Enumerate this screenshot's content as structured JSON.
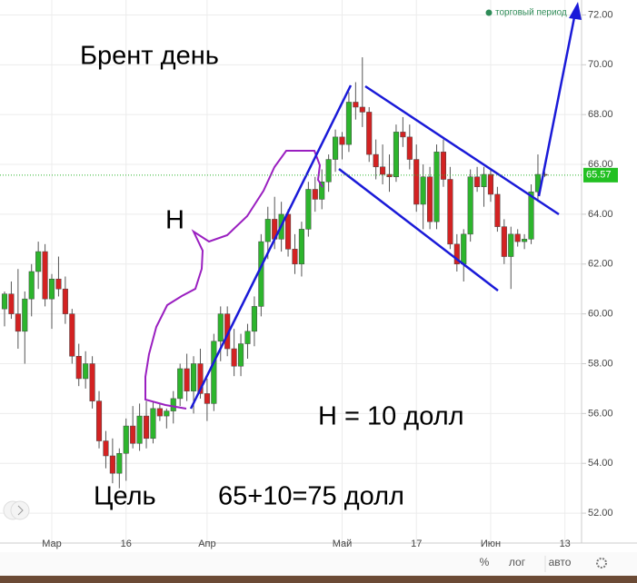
{
  "chart_data": {
    "type": "candlestick",
    "title": "Брент день",
    "annotations": [
      "Н",
      "Н = 10 долл",
      "Цель",
      "65+10=75 долл"
    ],
    "legend_label": "торговый период",
    "toolbar": [
      "%",
      "лог",
      "авто"
    ],
    "up_color": "#2db52d",
    "down_color": "#d32222",
    "categories": [
      null,
      null,
      null,
      null,
      null,
      null,
      null,
      "Мар",
      null,
      null,
      null,
      null,
      null,
      null,
      null,
      null,
      null,
      null,
      "16",
      null,
      null,
      null,
      null,
      null,
      null,
      null,
      null,
      null,
      null,
      null,
      "Апр",
      null,
      null,
      null,
      null,
      null,
      null,
      null,
      null,
      null,
      null,
      null,
      null,
      null,
      null,
      null,
      null,
      null,
      null,
      null,
      "Май",
      null,
      null,
      null,
      null,
      null,
      null,
      null,
      null,
      null,
      null,
      "17",
      null,
      null,
      null,
      null,
      null,
      null,
      null,
      null,
      null,
      null,
      "Июн",
      null,
      null,
      null,
      null,
      null,
      null,
      null,
      null,
      null,
      null,
      "13"
    ],
    "open": [
      60.2,
      60.8,
      60.0,
      59.3,
      60.6,
      61.7,
      62.5,
      60.6,
      61.4,
      61.0,
      60.0,
      58.3,
      57.4,
      58.0,
      56.5,
      54.9,
      54.3,
      53.6,
      54.4,
      55.5,
      54.8,
      55.9,
      55.0,
      56.2,
      55.9,
      56.1,
      56.6,
      57.8,
      56.9,
      58.0,
      56.8,
      56.4,
      58.9,
      60.0,
      58.6,
      57.9,
      58.8,
      59.3,
      60.3,
      62.9,
      63.8,
      63.0,
      64.0,
      62.6,
      62.0,
      63.4,
      65.0,
      64.6,
      65.3,
      66.2,
      67.1,
      66.8,
      68.5,
      68.3,
      68.1,
      66.4,
      65.9,
      65.6,
      65.5,
      67.3,
      67.1,
      66.2,
      64.4,
      65.5,
      63.7,
      66.5,
      65.4,
      62.8,
      62.0,
      63.2,
      65.5,
      65.1,
      65.6,
      64.8,
      63.5,
      62.3,
      63.2,
      62.9,
      63.0,
      64.9,
      65.6,
      null,
      null,
      null
    ],
    "high": [
      60.9,
      61.3,
      61.8,
      60.9,
      62.0,
      62.9,
      62.8,
      61.6,
      62.3,
      61.5,
      60.2,
      58.8,
      58.5,
      58.3,
      56.9,
      55.3,
      55.0,
      54.6,
      55.8,
      56.3,
      56.4,
      56.5,
      56.5,
      56.4,
      56.2,
      56.9,
      58.0,
      58.4,
      58.3,
      58.6,
      57.4,
      59.2,
      60.3,
      60.3,
      59.4,
      59.2,
      59.6,
      60.7,
      63.2,
      64.3,
      64.7,
      64.5,
      64.2,
      63.2,
      63.7,
      65.3,
      65.5,
      65.8,
      66.4,
      67.4,
      67.3,
      68.9,
      69.3,
      70.3,
      68.3,
      67.0,
      66.8,
      66.4,
      67.6,
      67.9,
      67.6,
      66.8,
      66.0,
      65.9,
      66.8,
      67.0,
      65.9,
      63.2,
      63.4,
      65.8,
      65.9,
      65.9,
      65.8,
      65.1,
      63.8,
      63.5,
      63.4,
      63.2,
      65.2,
      66.4,
      65.7,
      null,
      null,
      null
    ],
    "low": [
      59.5,
      59.8,
      58.6,
      58.0,
      59.9,
      61.0,
      60.3,
      59.4,
      60.7,
      59.6,
      58.0,
      57.1,
      57.0,
      56.2,
      54.6,
      53.8,
      53.2,
      53.0,
      53.3,
      54.6,
      54.5,
      54.6,
      54.8,
      55.7,
      55.4,
      55.6,
      56.3,
      56.5,
      56.0,
      56.6,
      55.7,
      56.1,
      58.1,
      58.3,
      57.5,
      57.5,
      58.2,
      58.7,
      59.9,
      62.2,
      62.6,
      62.5,
      62.3,
      61.6,
      61.5,
      63.1,
      64.1,
      64.2,
      64.9,
      65.7,
      66.2,
      66.5,
      67.8,
      67.5,
      66.1,
      65.4,
      65.2,
      64.9,
      65.3,
      66.7,
      65.8,
      64.1,
      63.4,
      63.4,
      63.4,
      65.1,
      62.6,
      61.7,
      61.3,
      62.9,
      64.9,
      64.3,
      64.5,
      63.3,
      62.0,
      61.0,
      62.7,
      62.6,
      62.8,
      64.5,
      65.5,
      null,
      null,
      null
    ],
    "close": [
      60.8,
      60.0,
      59.3,
      60.6,
      61.7,
      62.5,
      60.6,
      61.4,
      61.0,
      60.0,
      58.3,
      57.4,
      58.0,
      56.5,
      54.9,
      54.3,
      53.6,
      54.4,
      55.5,
      54.8,
      55.9,
      55.0,
      56.2,
      55.9,
      56.1,
      56.6,
      57.8,
      56.9,
      58.0,
      56.8,
      56.4,
      58.9,
      60.0,
      58.6,
      57.9,
      58.8,
      59.3,
      60.3,
      62.9,
      63.8,
      63.0,
      64.0,
      62.6,
      62.0,
      63.4,
      65.0,
      64.6,
      65.3,
      66.2,
      67.1,
      66.8,
      68.5,
      68.3,
      68.1,
      66.4,
      65.9,
      65.6,
      65.5,
      67.3,
      67.1,
      66.2,
      64.4,
      65.5,
      63.7,
      66.5,
      65.4,
      62.8,
      62.0,
      63.2,
      65.5,
      65.1,
      65.6,
      64.8,
      63.5,
      62.3,
      63.2,
      62.9,
      63.0,
      64.9,
      65.6,
      65.57,
      null,
      null,
      null
    ],
    "last_price": 65.57,
    "ylim": [
      50.8,
      72.6
    ],
    "yticks": [
      {
        "value": 52,
        "label": "52.00"
      },
      {
        "value": 54,
        "label": "54.00"
      },
      {
        "value": 56,
        "label": "56.00"
      },
      {
        "value": 58,
        "label": "58.00"
      },
      {
        "value": 60,
        "label": "60.00"
      },
      {
        "value": 62,
        "label": "62.00"
      },
      {
        "value": 64,
        "label": "64.00"
      },
      {
        "value": 66,
        "label": "66.00"
      },
      {
        "value": 68,
        "label": "68.00"
      },
      {
        "value": 70,
        "label": "70.00"
      },
      {
        "value": 72,
        "label": "72.00"
      }
    ],
    "grid": true
  }
}
